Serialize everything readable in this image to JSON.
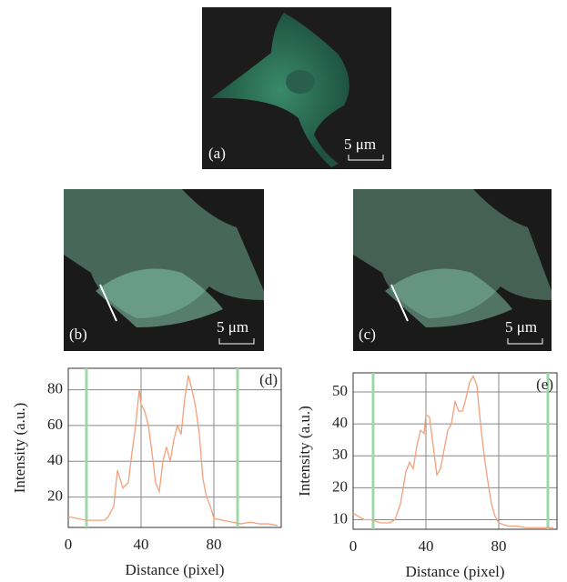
{
  "panels": [
    {
      "label": "(a)",
      "scale": "5 μm"
    },
    {
      "label": "(b)",
      "scale": "5 μm"
    },
    {
      "label": "(c)",
      "scale": "5 μm"
    }
  ],
  "chart_data": [
    {
      "type": "line",
      "corner_label": "(d)",
      "xlabel": "Distance (pixel)",
      "ylabel": "Intensity (a.u.)",
      "xlim": [
        0,
        117
      ],
      "ylim": [
        3,
        92
      ],
      "xticks": [
        0,
        40,
        80
      ],
      "yticks": [
        20,
        40,
        60,
        80
      ],
      "grid": true,
      "markers": [
        10,
        93
      ],
      "marker_color": "#9fd8a8",
      "x": [
        0,
        5,
        10,
        15,
        20,
        22,
        25,
        27,
        30,
        33,
        35,
        37,
        39,
        40,
        42,
        44,
        46,
        48,
        50,
        52,
        54,
        56,
        58,
        60,
        62,
        64,
        66,
        68,
        70,
        72,
        74,
        76,
        78,
        80,
        85,
        90,
        95,
        100,
        105,
        110,
        115
      ],
      "series": [
        {
          "color": "#f4a07a",
          "values": [
            9,
            8,
            7,
            7,
            7,
            9,
            15,
            35,
            25,
            28,
            45,
            60,
            80,
            72,
            68,
            60,
            45,
            28,
            23,
            40,
            48,
            40,
            52,
            60,
            55,
            75,
            88,
            80,
            70,
            55,
            30,
            20,
            15,
            8,
            7,
            6,
            5,
            6,
            5,
            5,
            4
          ]
        }
      ]
    },
    {
      "type": "line",
      "corner_label": "(e)",
      "xlabel": "Distance (pixel)",
      "ylabel": "Intensity (a.u.)",
      "xlim": [
        0,
        112
      ],
      "ylim": [
        7,
        56
      ],
      "xticks": [
        0,
        40,
        80
      ],
      "yticks": [
        10,
        20,
        30,
        40,
        50
      ],
      "grid": true,
      "markers": [
        11,
        107
      ],
      "marker_color": "#9fd8a8",
      "x": [
        0,
        3,
        6,
        10,
        15,
        20,
        23,
        26,
        29,
        31,
        33,
        35,
        37,
        39,
        40,
        42,
        44,
        46,
        48,
        50,
        52,
        54,
        56,
        58,
        60,
        62,
        64,
        66,
        68,
        70,
        72,
        74,
        76,
        78,
        80,
        85,
        90,
        95,
        100,
        105,
        110
      ],
      "series": [
        {
          "color": "#f4a07a",
          "values": [
            12,
            11,
            10,
            10,
            9,
            9,
            10,
            15,
            25,
            28,
            26,
            33,
            38,
            37,
            43,
            42,
            33,
            24,
            26,
            32,
            38,
            40,
            47,
            44,
            44,
            48,
            53,
            55,
            52,
            40,
            30,
            22,
            15,
            11,
            9,
            8,
            8,
            7.5,
            7.5,
            7.5,
            7.5
          ]
        }
      ]
    }
  ]
}
